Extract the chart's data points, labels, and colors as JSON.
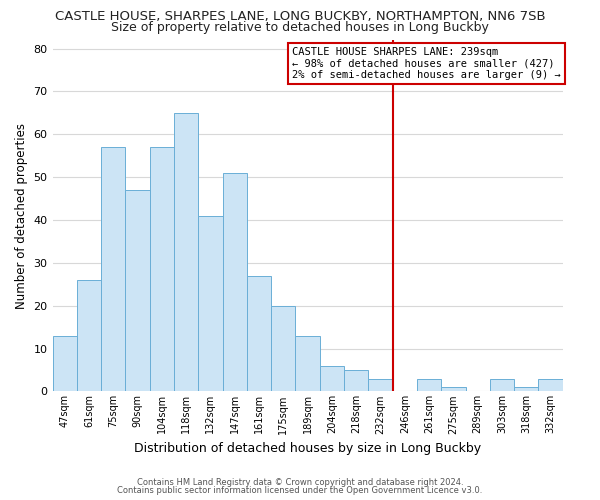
{
  "title": "CASTLE HOUSE, SHARPES LANE, LONG BUCKBY, NORTHAMPTON, NN6 7SB",
  "subtitle": "Size of property relative to detached houses in Long Buckby",
  "xlabel": "Distribution of detached houses by size in Long Buckby",
  "ylabel": "Number of detached properties",
  "bin_labels": [
    "47sqm",
    "61sqm",
    "75sqm",
    "90sqm",
    "104sqm",
    "118sqm",
    "132sqm",
    "147sqm",
    "161sqm",
    "175sqm",
    "189sqm",
    "204sqm",
    "218sqm",
    "232sqm",
    "246sqm",
    "261sqm",
    "275sqm",
    "289sqm",
    "303sqm",
    "318sqm",
    "332sqm"
  ],
  "bar_heights": [
    13,
    26,
    57,
    47,
    57,
    65,
    41,
    51,
    27,
    20,
    13,
    6,
    5,
    3,
    0,
    3,
    1,
    0,
    3,
    1,
    3
  ],
  "bar_color": "#cce4f5",
  "bar_edge_color": "#6aaed6",
  "vline_x_index": 13,
  "vline_color": "#cc0000",
  "annotation_title": "CASTLE HOUSE SHARPES LANE: 239sqm",
  "annotation_line1": "← 98% of detached houses are smaller (427)",
  "annotation_line2": "2% of semi-detached houses are larger (9) →",
  "annotation_box_color": "#ffffff",
  "annotation_box_edge": "#cc0000",
  "ylim": [
    0,
    82
  ],
  "yticks": [
    0,
    10,
    20,
    30,
    40,
    50,
    60,
    70,
    80
  ],
  "footer1": "Contains HM Land Registry data © Crown copyright and database right 2024.",
  "footer2": "Contains public sector information licensed under the Open Government Licence v3.0.",
  "background_color": "#ffffff",
  "grid_color": "#d8d8d8",
  "title_fontsize": 9.5,
  "subtitle_fontsize": 9.0
}
